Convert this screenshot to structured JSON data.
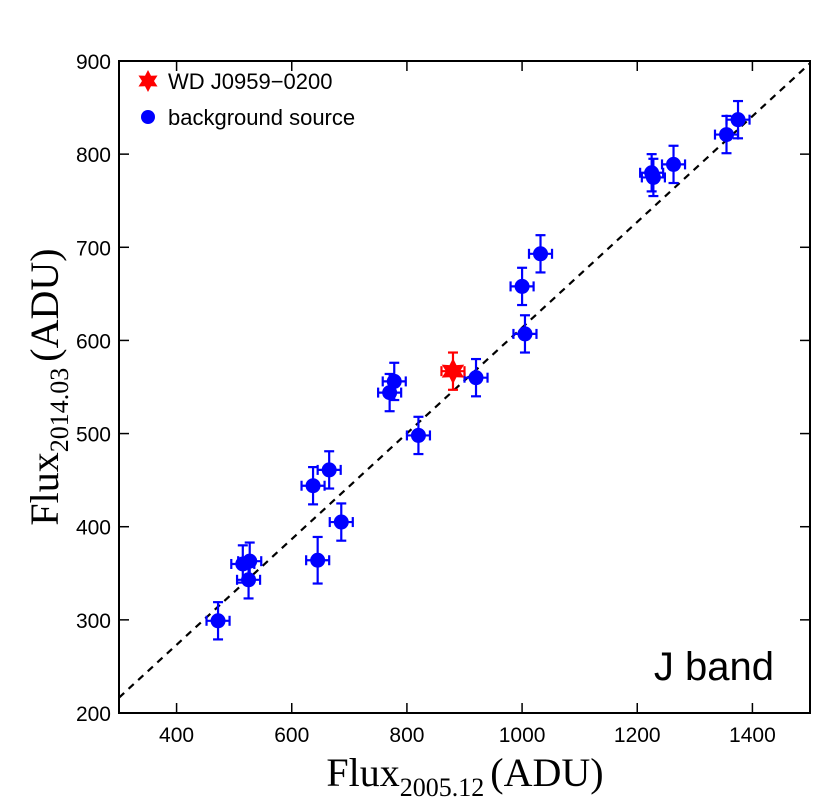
{
  "chart_data": {
    "type": "scatter",
    "title": "",
    "xlabel": {
      "base": "Flux",
      "sub": "2005.12",
      "unit": "(ADU)"
    },
    "ylabel": {
      "base": "Flux",
      "sub": "2014.03",
      "unit": "(ADU)"
    },
    "xlim": [
      300,
      1500
    ],
    "ylim": [
      200,
      900
    ],
    "xticks": [
      400,
      600,
      800,
      1000,
      1200,
      1400
    ],
    "yticks": [
      200,
      300,
      400,
      500,
      600,
      700,
      800,
      900
    ],
    "grid": false,
    "legend_position": "top-left",
    "annotation": "J band",
    "reference_line": {
      "style": "dashed",
      "color": "#000000",
      "x": [
        300,
        1500
      ],
      "y": [
        216.5,
        897.5
      ]
    },
    "series": [
      {
        "name": "WD J0959−0200",
        "marker": "star",
        "color": "#ff0000",
        "points": [
          {
            "x": 880,
            "y": 567,
            "xerr": 20,
            "yerr": 20
          }
        ]
      },
      {
        "name": "background source",
        "marker": "circle",
        "color": "#0000ff",
        "points": [
          {
            "x": 472,
            "y": 299,
            "xerr": 20,
            "yerr": 20
          },
          {
            "x": 515,
            "y": 360,
            "xerr": 20,
            "yerr": 20
          },
          {
            "x": 527,
            "y": 363,
            "xerr": 20,
            "yerr": 20
          },
          {
            "x": 525,
            "y": 343,
            "xerr": 20,
            "yerr": 20
          },
          {
            "x": 637,
            "y": 444,
            "xerr": 20,
            "yerr": 20
          },
          {
            "x": 665,
            "y": 461,
            "xerr": 20,
            "yerr": 20
          },
          {
            "x": 645,
            "y": 364,
            "xerr": 20,
            "yerr": 25
          },
          {
            "x": 686,
            "y": 405,
            "xerr": 20,
            "yerr": 20
          },
          {
            "x": 770,
            "y": 544,
            "xerr": 20,
            "yerr": 20
          },
          {
            "x": 778,
            "y": 556,
            "xerr": 20,
            "yerr": 20
          },
          {
            "x": 820,
            "y": 498,
            "xerr": 20,
            "yerr": 20
          },
          {
            "x": 920,
            "y": 560,
            "xerr": 20,
            "yerr": 20
          },
          {
            "x": 1000,
            "y": 658,
            "xerr": 20,
            "yerr": 20
          },
          {
            "x": 1005,
            "y": 607,
            "xerr": 20,
            "yerr": 20
          },
          {
            "x": 1032,
            "y": 693,
            "xerr": 20,
            "yerr": 20
          },
          {
            "x": 1225,
            "y": 780,
            "xerr": 20,
            "yerr": 20
          },
          {
            "x": 1228,
            "y": 775,
            "xerr": 20,
            "yerr": 20
          },
          {
            "x": 1263,
            "y": 789,
            "xerr": 20,
            "yerr": 20
          },
          {
            "x": 1355,
            "y": 821,
            "xerr": 20,
            "yerr": 20
          },
          {
            "x": 1375,
            "y": 837,
            "xerr": 20,
            "yerr": 20
          }
        ]
      }
    ]
  }
}
